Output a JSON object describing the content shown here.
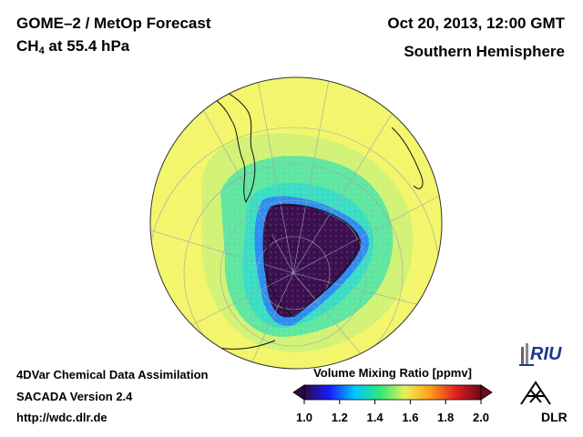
{
  "header": {
    "title": "GOME–2 / MetOp Forecast",
    "species_main": "CH",
    "species_sub": "4",
    "species_rest": " at 55.4 hPa",
    "date": "Oct 20, 2013, 12:00 GMT",
    "region": "Southern Hemisphere"
  },
  "footer": {
    "line1": "4DVar Chemical Data Assimilation",
    "line2": "SACADA Version 2.4",
    "line3": "http://wdc.dlr.de"
  },
  "legend": {
    "title": "Volume Mixing Ratio [ppmv]",
    "ticks": [
      "1.0",
      "1.2",
      "1.4",
      "1.6",
      "1.8",
      "2.0"
    ],
    "tick_values": [
      1.0,
      1.2,
      1.4,
      1.6,
      1.8,
      2.0
    ],
    "range": [
      1.0,
      2.0
    ],
    "colors": [
      "#2b0a4a",
      "#1a1aff",
      "#00c8ff",
      "#2ee87a",
      "#e8f05a",
      "#ff9c1a",
      "#e02020",
      "#6a0a1a"
    ]
  },
  "map_colors": {
    "background": "#f3f56a",
    "belt_outer": "#c6f07a",
    "belt_mid": "#5fe6a0",
    "belt_inner": "#3bdcc4",
    "vortex_edge": "#2f8cf0",
    "vortex_core": "#3b0f4f",
    "coast": "#111111",
    "grid": "#9aa6b0"
  },
  "logos": {
    "riu": "RIU",
    "dlr": "DLR"
  }
}
